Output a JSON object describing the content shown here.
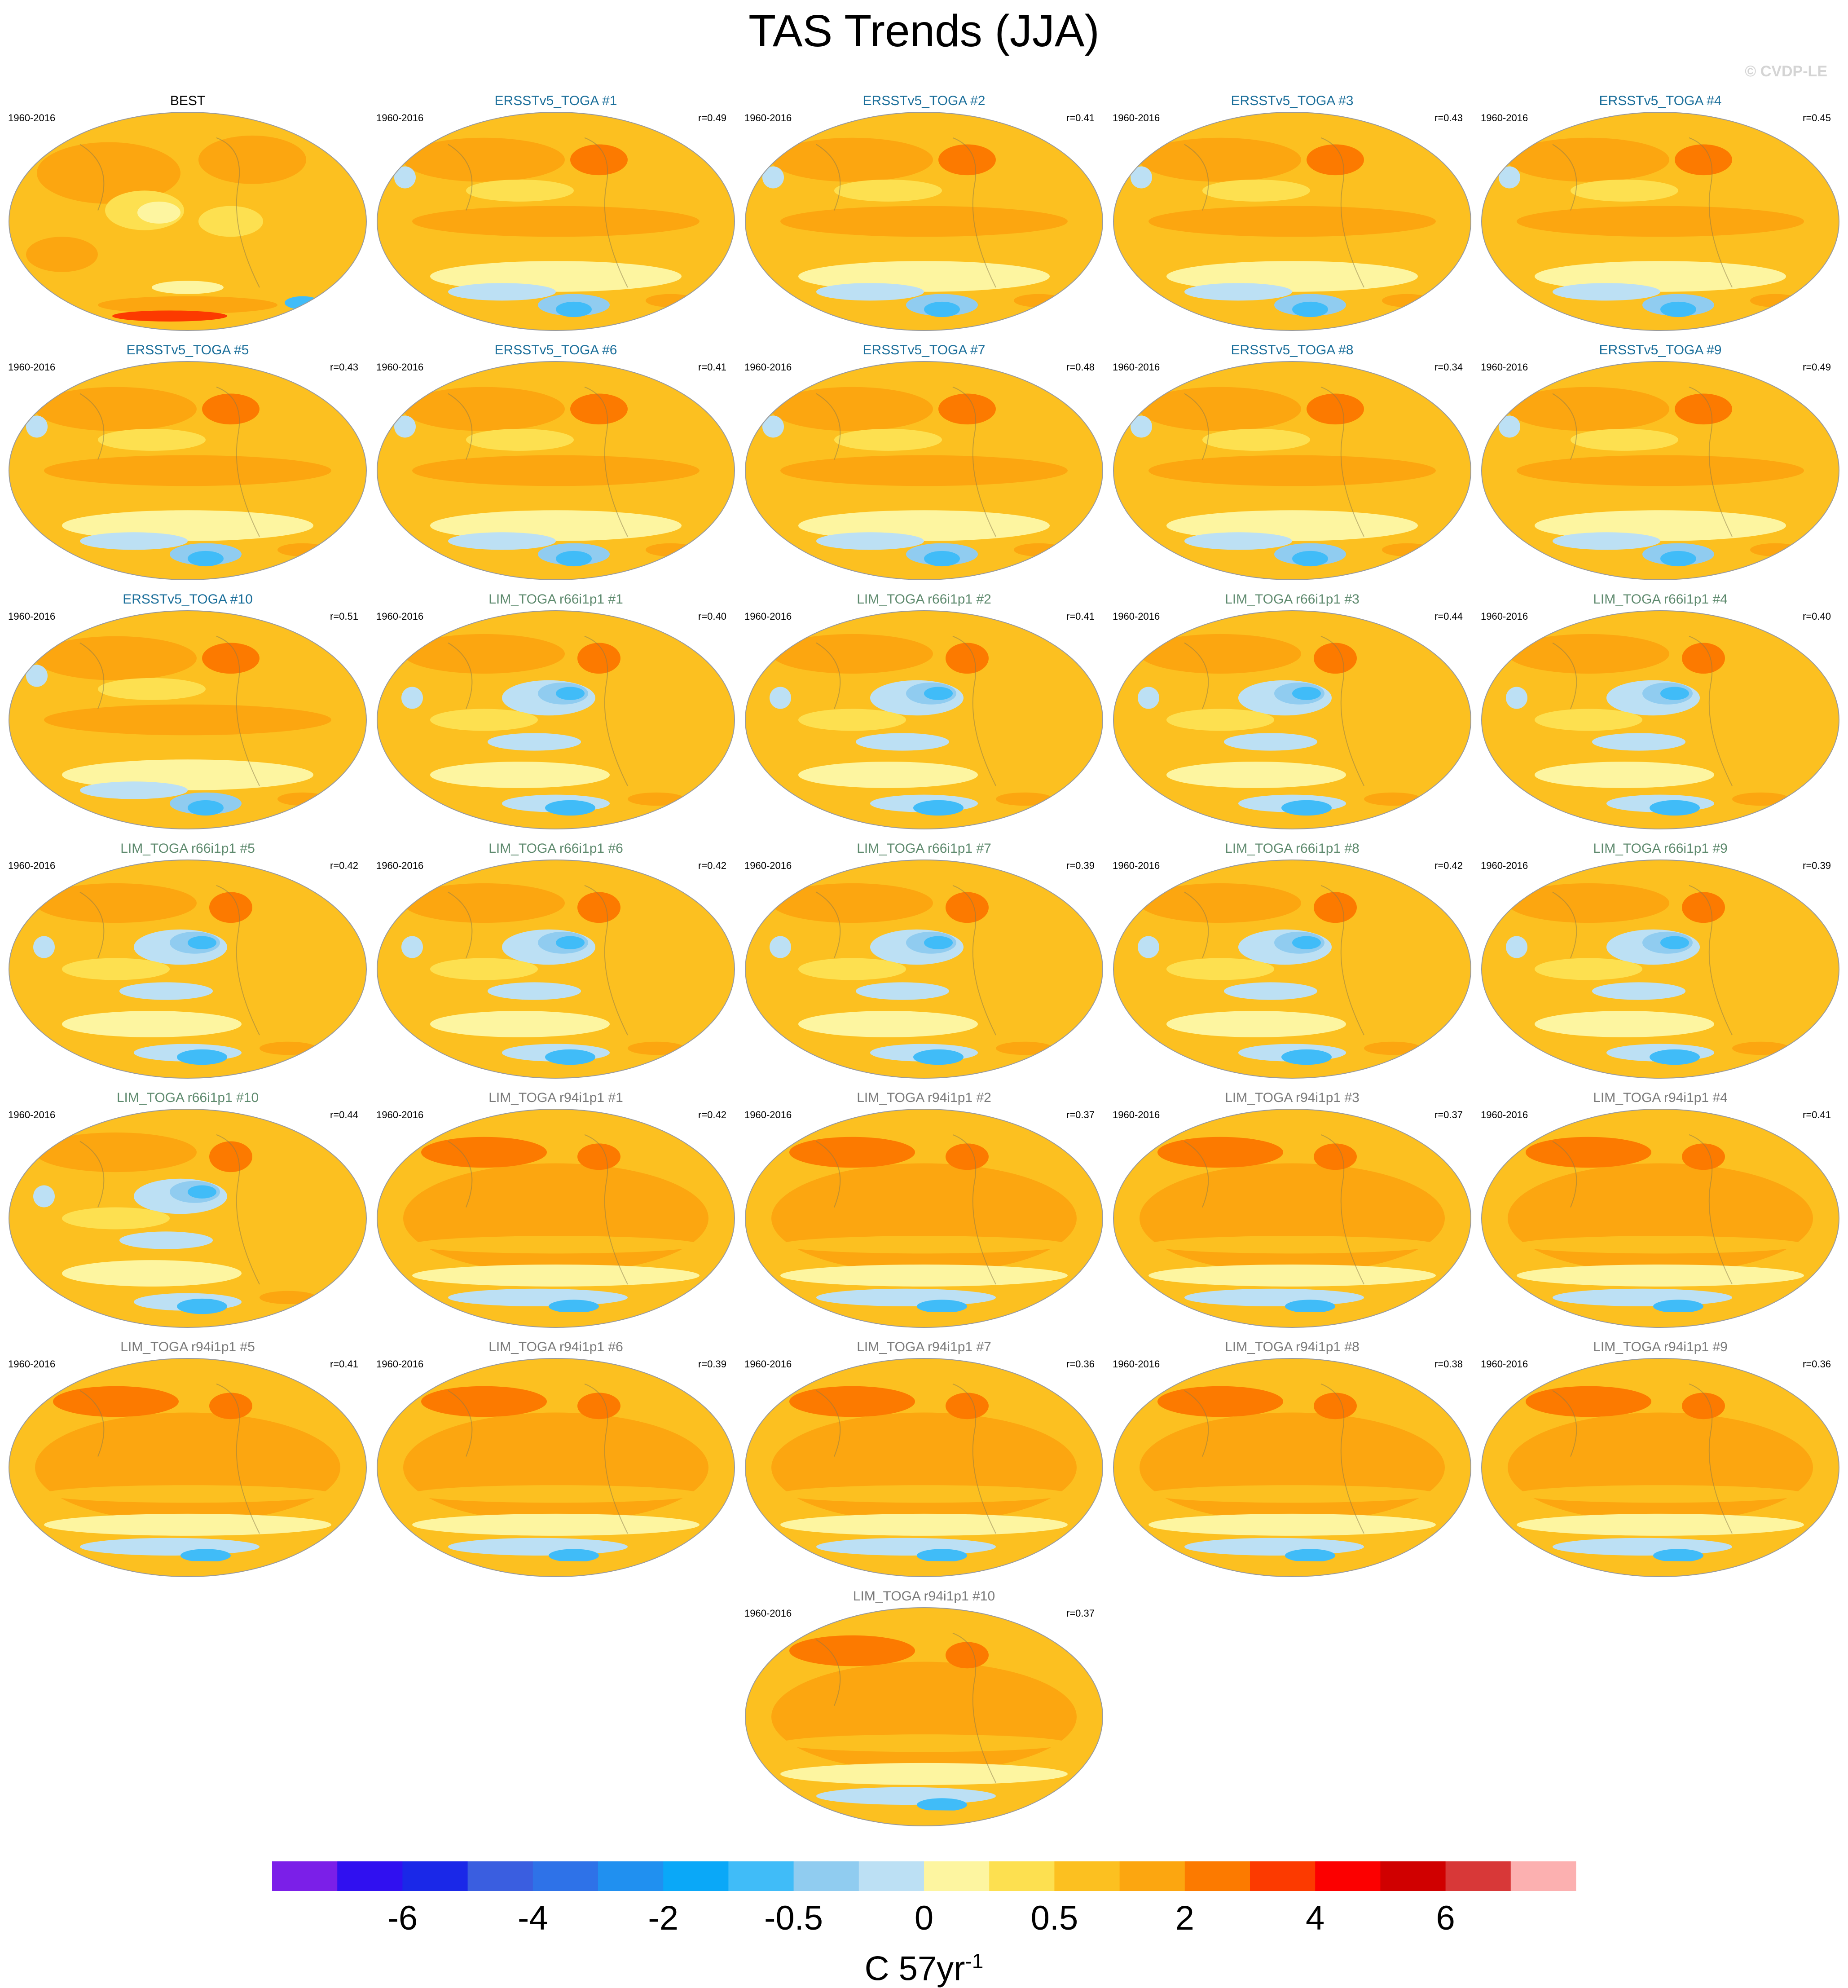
{
  "title": "TAS Trends (JJA)",
  "watermark": "© CVDP-LE",
  "colors": {
    "obs_title": "#000000",
    "ersst_title": "#1a6e9a",
    "lim_title": "#5e8a6e",
    "lim_r94_title": "#7a7a7a",
    "coastline": "#8a7a4a"
  },
  "chart_data": {
    "type": "heatmap",
    "projection": "global map (Robinson-like), Pacific-centered",
    "period": "1960-2016",
    "panels": [
      {
        "title": "BEST",
        "years": "1960-2016",
        "r": "",
        "group": "obs",
        "row": 0,
        "col": 0,
        "pattern": "obs"
      },
      {
        "title": "ERSSTv5_TOGA #1",
        "years": "1960-2016",
        "r": "r=0.49",
        "group": "ersst",
        "row": 0,
        "col": 1,
        "pattern": "ersst"
      },
      {
        "title": "ERSSTv5_TOGA #2",
        "years": "1960-2016",
        "r": "r=0.41",
        "group": "ersst",
        "row": 0,
        "col": 2,
        "pattern": "ersst"
      },
      {
        "title": "ERSSTv5_TOGA #3",
        "years": "1960-2016",
        "r": "r=0.43",
        "group": "ersst",
        "row": 0,
        "col": 3,
        "pattern": "ersst"
      },
      {
        "title": "ERSSTv5_TOGA #4",
        "years": "1960-2016",
        "r": "r=0.45",
        "group": "ersst",
        "row": 0,
        "col": 4,
        "pattern": "ersst"
      },
      {
        "title": "ERSSTv5_TOGA #5",
        "years": "1960-2016",
        "r": "r=0.43",
        "group": "ersst",
        "row": 1,
        "col": 0,
        "pattern": "ersst"
      },
      {
        "title": "ERSSTv5_TOGA #6",
        "years": "1960-2016",
        "r": "r=0.41",
        "group": "ersst",
        "row": 1,
        "col": 1,
        "pattern": "ersst"
      },
      {
        "title": "ERSSTv5_TOGA #7",
        "years": "1960-2016",
        "r": "r=0.48",
        "group": "ersst",
        "row": 1,
        "col": 2,
        "pattern": "ersst"
      },
      {
        "title": "ERSSTv5_TOGA #8",
        "years": "1960-2016",
        "r": "r=0.34",
        "group": "ersst",
        "row": 1,
        "col": 3,
        "pattern": "ersst"
      },
      {
        "title": "ERSSTv5_TOGA #9",
        "years": "1960-2016",
        "r": "r=0.49",
        "group": "ersst",
        "row": 1,
        "col": 4,
        "pattern": "ersst"
      },
      {
        "title": "ERSSTv5_TOGA #10",
        "years": "1960-2016",
        "r": "r=0.51",
        "group": "ersst",
        "row": 2,
        "col": 0,
        "pattern": "ersst"
      },
      {
        "title": "LIM_TOGA r66i1p1 #1",
        "years": "1960-2016",
        "r": "r=0.40",
        "group": "lim",
        "row": 2,
        "col": 1,
        "pattern": "lim66"
      },
      {
        "title": "LIM_TOGA r66i1p1 #2",
        "years": "1960-2016",
        "r": "r=0.41",
        "group": "lim",
        "row": 2,
        "col": 2,
        "pattern": "lim66"
      },
      {
        "title": "LIM_TOGA r66i1p1 #3",
        "years": "1960-2016",
        "r": "r=0.44",
        "group": "lim",
        "row": 2,
        "col": 3,
        "pattern": "lim66"
      },
      {
        "title": "LIM_TOGA r66i1p1 #4",
        "years": "1960-2016",
        "r": "r=0.40",
        "group": "lim",
        "row": 2,
        "col": 4,
        "pattern": "lim66"
      },
      {
        "title": "LIM_TOGA r66i1p1 #5",
        "years": "1960-2016",
        "r": "r=0.42",
        "group": "lim",
        "row": 3,
        "col": 0,
        "pattern": "lim66"
      },
      {
        "title": "LIM_TOGA r66i1p1 #6",
        "years": "1960-2016",
        "r": "r=0.42",
        "group": "lim",
        "row": 3,
        "col": 1,
        "pattern": "lim66"
      },
      {
        "title": "LIM_TOGA r66i1p1 #7",
        "years": "1960-2016",
        "r": "r=0.39",
        "group": "lim",
        "row": 3,
        "col": 2,
        "pattern": "lim66"
      },
      {
        "title": "LIM_TOGA r66i1p1 #8",
        "years": "1960-2016",
        "r": "r=0.42",
        "group": "lim",
        "row": 3,
        "col": 3,
        "pattern": "lim66"
      },
      {
        "title": "LIM_TOGA r66i1p1 #9",
        "years": "1960-2016",
        "r": "r=0.39",
        "group": "lim",
        "row": 3,
        "col": 4,
        "pattern": "lim66"
      },
      {
        "title": "LIM_TOGA r66i1p1 #10",
        "years": "1960-2016",
        "r": "r=0.44",
        "group": "lim",
        "row": 4,
        "col": 0,
        "pattern": "lim66"
      },
      {
        "title": "LIM_TOGA r94i1p1 #1",
        "years": "1960-2016",
        "r": "r=0.42",
        "group": "lim94",
        "row": 4,
        "col": 1,
        "pattern": "lim94"
      },
      {
        "title": "LIM_TOGA r94i1p1 #2",
        "years": "1960-2016",
        "r": "r=0.37",
        "group": "lim94",
        "row": 4,
        "col": 2,
        "pattern": "lim94"
      },
      {
        "title": "LIM_TOGA r94i1p1 #3",
        "years": "1960-2016",
        "r": "r=0.37",
        "group": "lim94",
        "row": 4,
        "col": 3,
        "pattern": "lim94"
      },
      {
        "title": "LIM_TOGA r94i1p1 #4",
        "years": "1960-2016",
        "r": "r=0.41",
        "group": "lim94",
        "row": 4,
        "col": 4,
        "pattern": "lim94"
      },
      {
        "title": "LIM_TOGA r94i1p1 #5",
        "years": "1960-2016",
        "r": "r=0.41",
        "group": "lim94",
        "row": 5,
        "col": 0,
        "pattern": "lim94"
      },
      {
        "title": "LIM_TOGA r94i1p1 #6",
        "years": "1960-2016",
        "r": "r=0.39",
        "group": "lim94",
        "row": 5,
        "col": 1,
        "pattern": "lim94"
      },
      {
        "title": "LIM_TOGA r94i1p1 #7",
        "years": "1960-2016",
        "r": "r=0.36",
        "group": "lim94",
        "row": 5,
        "col": 2,
        "pattern": "lim94"
      },
      {
        "title": "LIM_TOGA r94i1p1 #8",
        "years": "1960-2016",
        "r": "r=0.38",
        "group": "lim94",
        "row": 5,
        "col": 3,
        "pattern": "lim94"
      },
      {
        "title": "LIM_TOGA r94i1p1 #9",
        "years": "1960-2016",
        "r": "r=0.36",
        "group": "lim94",
        "row": 5,
        "col": 4,
        "pattern": "lim94"
      },
      {
        "title": "LIM_TOGA r94i1p1 #10",
        "years": "1960-2016",
        "r": "r=0.37",
        "group": "lim94",
        "row": 6,
        "col": 2,
        "pattern": "lim94"
      }
    ],
    "colorbar": {
      "colors": [
        "#7b1fe8",
        "#3010f0",
        "#1a28e8",
        "#3a5ee0",
        "#2e72e8",
        "#2090f0",
        "#0aa8f8",
        "#40bcf8",
        "#90ccf0",
        "#bce0f4",
        "#fdf5a0",
        "#fde050",
        "#fcc020",
        "#fca610",
        "#fc7a00",
        "#fc3a00",
        "#fc0000",
        "#d00000",
        "#d83838",
        "#fcb0b0"
      ],
      "tick_labels": [
        "-6",
        "-4",
        "-2",
        "-0.5",
        "0",
        "0.5",
        "2",
        "4",
        "6"
      ],
      "units": "C 57yr",
      "units_sup": "-1"
    }
  }
}
